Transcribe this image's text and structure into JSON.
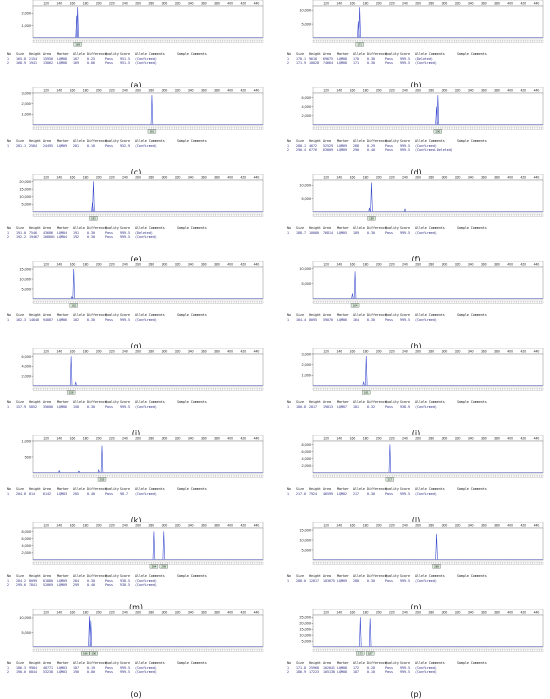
{
  "table_header": {
    "no": "No",
    "size": "Size",
    "height": "Height",
    "area": "Area",
    "marker": "Marker",
    "allele": "Allele",
    "difference": "Difference",
    "quality": "Quality",
    "score": "Score",
    "allele_comments": "Allele Comments",
    "sample_comments": "Sample Comments"
  },
  "x_ticks": [
    120,
    140,
    160,
    180,
    200,
    220,
    240,
    260,
    280,
    300,
    320,
    340,
    360,
    380,
    400,
    420,
    440
  ],
  "colors": {
    "trace": "#3344cc",
    "tag_fill": "#d9ecd9",
    "tag_border": "#444444",
    "frame": "#888888",
    "table_text": "#2a2a80"
  },
  "chart_data": [
    {
      "type": "line",
      "caption": "(a)",
      "xlim": [
        100,
        450
      ],
      "ylim": [
        0,
        2600
      ],
      "y_ticks": [
        {
          "v": 1000,
          "label": "1,000"
        },
        {
          "v": 2000,
          "label": "2,000"
        }
      ],
      "peaks": [
        {
          "x": 168,
          "h": 2500
        },
        {
          "x": 166.5,
          "h": 1800
        }
      ],
      "minor": [],
      "tags": [
        "169"
      ],
      "rows": [
        {
          "no": "1",
          "size": "165.8",
          "height": "2154",
          "area": "15950",
          "marker": "LQM08",
          "allele": "167",
          "difference": "0.25",
          "quality": "Pass",
          "score": "951.5",
          "comment": "(Confirmed)"
        },
        {
          "no": "2",
          "size": "168.9",
          "height": "1941",
          "area": "13062",
          "marker": "LQM08",
          "allele": "169",
          "difference": "0.06",
          "quality": "Pass",
          "score": "951.5",
          "comment": "(Confirmed)"
        }
      ]
    },
    {
      "type": "line",
      "caption": "(b)",
      "xlim": [
        100,
        450
      ],
      "ylim": [
        0,
        11500
      ],
      "y_ticks": [
        {
          "v": 5000,
          "label": "5,000"
        },
        {
          "v": 10000,
          "label": "10,000"
        }
      ],
      "peaks": [
        {
          "x": 171,
          "h": 11000
        },
        {
          "x": 169,
          "h": 6000
        }
      ],
      "minor": [],
      "tags": [
        "171"
      ],
      "rows": [
        {
          "no": "1",
          "size": "170.1",
          "height": "9618",
          "area": "69675",
          "marker": "LQM08",
          "allele": "170",
          "difference": "0.30",
          "quality": "Pass",
          "score": "999.5",
          "comment": "(Deleted)"
        },
        {
          "no": "2",
          "size": "171.9",
          "height": "10028",
          "area": "74664",
          "marker": "LQM08",
          "allele": "171",
          "difference": "0.30",
          "quality": "Pass",
          "score": "999.5",
          "comment": "(Confirmed)"
        }
      ]
    },
    {
      "type": "line",
      "caption": "(c)",
      "xlim": [
        100,
        450
      ],
      "ylim": [
        0,
        3000
      ],
      "y_ticks": [
        {
          "v": 1000,
          "label": "1,000"
        },
        {
          "v": 2000,
          "label": "2,000"
        },
        {
          "v": 3000,
          "label": "3,000"
        }
      ],
      "peaks": [
        {
          "x": 281,
          "h": 2800
        }
      ],
      "minor": [],
      "tags": [
        "281"
      ],
      "rows": [
        {
          "no": "1",
          "size": "281.1",
          "height": "2584",
          "area": "24495",
          "marker": "LQM09",
          "allele": "281",
          "difference": "0.10",
          "quality": "Pass",
          "score": "952.9",
          "comment": "(Confirmed)"
        }
      ]
    },
    {
      "type": "line",
      "caption": "(d)",
      "xlim": [
        100,
        450
      ],
      "ylim": [
        0,
        7000
      ],
      "y_ticks": [
        {
          "v": 2000,
          "label": "2,000"
        },
        {
          "v": 4000,
          "label": "4,000"
        },
        {
          "v": 6000,
          "label": "6,000"
        }
      ],
      "peaks": [
        {
          "x": 290,
          "h": 6500
        },
        {
          "x": 288,
          "h": 4000
        }
      ],
      "minor": [],
      "tags": [
        "290"
      ],
      "rows": [
        {
          "no": "1",
          "size": "288.1",
          "height": "4672",
          "area": "52529",
          "marker": "LQM09",
          "allele": "288",
          "difference": "0.29",
          "quality": "Pass",
          "score": "999.5",
          "comment": "(Confirmed)"
        },
        {
          "no": "2",
          "size": "290.4",
          "height": "6776",
          "area": "63809",
          "marker": "LQM09",
          "allele": "290",
          "difference": "0.40",
          "quality": "Pass",
          "score": "999.5",
          "comment": "(Confirmed-Deleted)"
        }
      ]
    },
    {
      "type": "line",
      "caption": "(e)",
      "xlim": [
        100,
        450
      ],
      "ylim": [
        0,
        21000
      ],
      "y_ticks": [
        {
          "v": 5000,
          "label": "5,000"
        },
        {
          "v": 10000,
          "label": "10,000"
        },
        {
          "v": 15000,
          "label": "15,000"
        },
        {
          "v": 20000,
          "label": "20,000"
        }
      ],
      "peaks": [
        {
          "x": 192,
          "h": 20000
        },
        {
          "x": 190.5,
          "h": 6000
        }
      ],
      "minor": [],
      "tags": [
        "192"
      ],
      "rows": [
        {
          "no": "1",
          "size": "191.0",
          "height": "7546",
          "area": "43686",
          "marker": "LQM04",
          "allele": "191",
          "difference": "0.30",
          "quality": "Pass",
          "score": "999.5",
          "comment": "(Deleted)"
        },
        {
          "no": "2",
          "size": "192.2",
          "height": "19467",
          "area": "108001",
          "marker": "LQM04",
          "allele": "192",
          "difference": "0.30",
          "quality": "Pass",
          "score": "999.5",
          "comment": "(Confirmed)"
        }
      ]
    },
    {
      "type": "line",
      "caption": "(f)",
      "xlim": [
        100,
        450
      ],
      "ylim": [
        0,
        12000
      ],
      "y_ticks": [
        {
          "v": 5000,
          "label": "5,000"
        },
        {
          "v": 10000,
          "label": "10,000"
        }
      ],
      "peaks": [
        {
          "x": 189,
          "h": 11000
        }
      ],
      "minor": [
        {
          "x": 186,
          "h": 1500
        },
        {
          "x": 240,
          "h": 1200
        }
      ],
      "tags": [
        "189"
      ],
      "rows": [
        {
          "no": "1",
          "size": "188.7",
          "height": "10080",
          "area": "76814",
          "marker": "LQM05",
          "allele": "189",
          "difference": "0.30",
          "quality": "Pass",
          "score": "999.5",
          "comment": "(Confirmed)"
        }
      ]
    },
    {
      "type": "line",
      "caption": "(g)",
      "xlim": [
        100,
        450
      ],
      "ylim": [
        0,
        16000
      ],
      "y_ticks": [
        {
          "v": 5000,
          "label": "5,000"
        },
        {
          "v": 10000,
          "label": "10,000"
        },
        {
          "v": 15000,
          "label": "15,000"
        }
      ],
      "peaks": [
        {
          "x": 162,
          "h": 15000
        }
      ],
      "minor": [
        {
          "x": 159,
          "h": 1200
        }
      ],
      "tags": [
        "162"
      ],
      "rows": [
        {
          "no": "1",
          "size": "162.3",
          "height": "14848",
          "area": "94887",
          "marker": "LQM06",
          "allele": "162",
          "difference": "0.30",
          "quality": "Pass",
          "score": "999.5",
          "comment": "(Confirmed)"
        }
      ]
    },
    {
      "type": "line",
      "caption": "(h)",
      "xlim": [
        100,
        450
      ],
      "ylim": [
        0,
        10500
      ],
      "y_ticks": [
        {
          "v": 5000,
          "label": "5,000"
        },
        {
          "v": 10000,
          "label": "10,000"
        }
      ],
      "peaks": [
        {
          "x": 164,
          "h": 9000
        }
      ],
      "minor": [
        {
          "x": 160,
          "h": 1800
        }
      ],
      "tags": [
        "164"
      ],
      "rows": [
        {
          "no": "1",
          "size": "164.4",
          "height": "8095",
          "area": "59070",
          "marker": "LQM06",
          "allele": "164",
          "difference": "0.30",
          "quality": "Pass",
          "score": "999.5",
          "comment": "(Confirmed)"
        }
      ]
    },
    {
      "type": "line",
      "caption": "(i)",
      "xlim": [
        100,
        450
      ],
      "ylim": [
        0,
        6500
      ],
      "y_ticks": [
        {
          "v": 2000,
          "label": "2,000"
        },
        {
          "v": 4000,
          "label": "4,000"
        },
        {
          "v": 6000,
          "label": "6,000"
        }
      ],
      "peaks": [
        {
          "x": 158,
          "h": 6000
        }
      ],
      "minor": [
        {
          "x": 165,
          "h": 800
        }
      ],
      "tags": [
        "158"
      ],
      "rows": [
        {
          "no": "1",
          "size": "157.9",
          "height": "5852",
          "area": "35600",
          "marker": "LQM06",
          "allele": "158",
          "difference": "0.30",
          "quality": "Pass",
          "score": "999.5",
          "comment": "(Confirmed)"
        }
      ]
    },
    {
      "type": "line",
      "caption": "(j)",
      "xlim": [
        100,
        450
      ],
      "ylim": [
        0,
        3000
      ],
      "y_ticks": [
        {
          "v": 1000,
          "label": "1,000"
        },
        {
          "v": 2000,
          "label": "2,000"
        },
        {
          "v": 3000,
          "label": "3,000"
        }
      ],
      "peaks": [
        {
          "x": 181,
          "h": 2800
        }
      ],
      "minor": [
        {
          "x": 177,
          "h": 400
        }
      ],
      "tags": [
        "181"
      ],
      "rows": [
        {
          "no": "1",
          "size": "180.8",
          "height": "2817",
          "area": "19813",
          "marker": "LQM07",
          "allele": "181",
          "difference": "0.32",
          "quality": "Pass",
          "score": "938.9",
          "comment": "(Confirmed)"
        }
      ]
    },
    {
      "type": "line",
      "caption": "(k)",
      "xlim": [
        100,
        450
      ],
      "ylim": [
        0,
        1000
      ],
      "y_ticks": [
        {
          "v": 500,
          "label": "500"
        },
        {
          "v": 1000,
          "label": "1,000"
        }
      ],
      "peaks": [
        {
          "x": 205,
          "h": 850
        }
      ],
      "minor": [
        {
          "x": 140,
          "h": 80
        },
        {
          "x": 170,
          "h": 60
        },
        {
          "x": 200,
          "h": 100
        }
      ],
      "tags": [
        "205"
      ],
      "rows": [
        {
          "no": "1",
          "size": "204.8",
          "height": "814",
          "area": "6142",
          "marker": "LQM03",
          "allele": "205",
          "difference": "0.40",
          "quality": "Pass",
          "score": "98.7",
          "comment": "(Confirmed)"
        }
      ]
    },
    {
      "type": "line",
      "caption": "(l)",
      "xlim": [
        100,
        450
      ],
      "ylim": [
        0,
        9000
      ],
      "y_ticks": [
        {
          "v": 2000,
          "label": "2,000"
        },
        {
          "v": 4000,
          "label": "4,000"
        },
        {
          "v": 6000,
          "label": "6,000"
        },
        {
          "v": 8000,
          "label": "8,000"
        }
      ],
      "peaks": [
        {
          "x": 217,
          "h": 8000
        }
      ],
      "minor": [],
      "tags": [
        "217"
      ],
      "rows": [
        {
          "no": "1",
          "size": "217.0",
          "height": "7924",
          "area": "46599",
          "marker": "LQM02",
          "allele": "217",
          "difference": "0.30",
          "quality": "Pass",
          "score": "999.5",
          "comment": "(Confirmed)"
        }
      ]
    },
    {
      "type": "line",
      "caption": "(m)",
      "xlim": [
        100,
        450
      ],
      "ylim": [
        0,
        9000
      ],
      "y_ticks": [
        {
          "v": 2000,
          "label": "2,000"
        },
        {
          "v": 4000,
          "label": "4,000"
        },
        {
          "v": 6000,
          "label": "6,000"
        },
        {
          "v": 8000,
          "label": "8,000"
        }
      ],
      "peaks": [
        {
          "x": 284,
          "h": 8000
        },
        {
          "x": 299,
          "h": 8000
        }
      ],
      "minor": [],
      "tags": [
        "284",
        "299"
      ],
      "rows": [
        {
          "no": "1",
          "size": "284.2",
          "height": "8099",
          "area": "61880",
          "marker": "LQM09",
          "allele": "284",
          "difference": "0.30",
          "quality": "Pass",
          "score": "938.5",
          "comment": "(Confirmed)"
        },
        {
          "no": "2",
          "size": "299.6",
          "height": "7841",
          "area": "52069",
          "marker": "LQM09",
          "allele": "299",
          "difference": "0.40",
          "quality": "Pass",
          "score": "938.5",
          "comment": "(Confirmed)"
        }
      ]
    },
    {
      "type": "line",
      "caption": "(n)",
      "xlim": [
        100,
        450
      ],
      "ylim": [
        0,
        16000
      ],
      "y_ticks": [
        {
          "v": 5000,
          "label": "5,000"
        },
        {
          "v": 10000,
          "label": "10,000"
        },
        {
          "v": 15000,
          "label": "15,000"
        }
      ],
      "peaks": [
        {
          "x": 288,
          "h": 13000
        }
      ],
      "minor": [],
      "tags": [
        "288"
      ],
      "rows": [
        {
          "no": "1",
          "size": "288.0",
          "height": "12817",
          "area": "103675",
          "marker": "LQM09",
          "allele": "288",
          "difference": "0.30",
          "quality": "Pass",
          "score": "999.5",
          "comment": "(Confirmed)"
        }
      ]
    },
    {
      "type": "line",
      "caption": "(o)",
      "xlim": [
        100,
        450
      ],
      "ylim": [
        0,
        11000
      ],
      "y_ticks": [
        {
          "v": 5000,
          "label": "5,000"
        },
        {
          "v": 10000,
          "label": "10,000"
        }
      ],
      "peaks": [
        {
          "x": 186,
          "h": 10500
        },
        {
          "x": 188,
          "h": 9000
        }
      ],
      "minor": [],
      "tags": [
        "186",
        "190"
      ],
      "rows": [
        {
          "no": "1",
          "size": "186.3",
          "height": "9984",
          "area": "48771",
          "marker": "LQM03",
          "allele": "187",
          "difference": "0.19",
          "quality": "Pass",
          "score": "999.5",
          "comment": "(Confirmed)"
        },
        {
          "no": "2",
          "size": "190.0",
          "height": "6844",
          "area": "53238",
          "marker": "LQM03",
          "allele": "190",
          "difference": "0.00",
          "quality": "Pass",
          "score": "999.5",
          "comment": "(Confirmed)"
        }
      ]
    },
    {
      "type": "line",
      "caption": "(p)",
      "xlim": [
        100,
        450
      ],
      "ylim": [
        0,
        27000
      ],
      "y_ticks": [
        {
          "v": 5000,
          "label": "5,000"
        },
        {
          "v": 10000,
          "label": "10,000"
        },
        {
          "v": 15000,
          "label": "15,000"
        },
        {
          "v": 20000,
          "label": "20,000"
        },
        {
          "v": 25000,
          "label": "25,000"
        }
      ],
      "peaks": [
        {
          "x": 172,
          "h": 25000
        },
        {
          "x": 187,
          "h": 24000
        }
      ],
      "minor": [],
      "tags": [
        "172",
        "187"
      ],
      "rows": [
        {
          "no": "1",
          "size": "171.8",
          "height": "25968",
          "area": "102041",
          "marker": "LQM08",
          "allele": "172",
          "difference": "0.20",
          "quality": "Pass",
          "score": "999.5",
          "comment": "(Confirmed)"
        },
        {
          "no": "2",
          "size": "186.9",
          "height": "17223",
          "area": "105138",
          "marker": "LQM08",
          "allele": "187",
          "difference": "0.10",
          "quality": "Pass",
          "score": "999.5",
          "comment": "(Confirmed)"
        }
      ]
    }
  ]
}
